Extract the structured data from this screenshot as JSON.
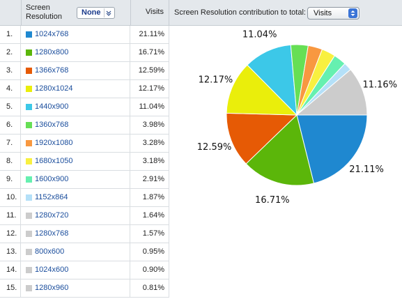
{
  "header": {
    "resolution_label": "Screen Resolution",
    "segment_button": "None",
    "visits_label": "Visits",
    "contribution_label": "Screen Resolution contribution to total:",
    "metric_select": "Visits"
  },
  "rows": [
    {
      "num": "1.",
      "resolution": "1024x768",
      "visits": "21.11%",
      "color": "#1f88d0"
    },
    {
      "num": "2.",
      "resolution": "1280x800",
      "visits": "16.71%",
      "color": "#5bb60a"
    },
    {
      "num": "3.",
      "resolution": "1366x768",
      "visits": "12.59%",
      "color": "#e65a05"
    },
    {
      "num": "4.",
      "resolution": "1280x1024",
      "visits": "12.17%",
      "color": "#eaee0b"
    },
    {
      "num": "5.",
      "resolution": "1440x900",
      "visits": "11.04%",
      "color": "#3cc8e8"
    },
    {
      "num": "6.",
      "resolution": "1360x768",
      "visits": "3.98%",
      "color": "#66df55"
    },
    {
      "num": "7.",
      "resolution": "1920x1080",
      "visits": "3.28%",
      "color": "#f89840"
    },
    {
      "num": "8.",
      "resolution": "1680x1050",
      "visits": "3.18%",
      "color": "#f8f040"
    },
    {
      "num": "9.",
      "resolution": "1600x900",
      "visits": "2.91%",
      "color": "#66f0b0"
    },
    {
      "num": "10.",
      "resolution": "1152x864",
      "visits": "1.87%",
      "color": "#b4e0f8"
    },
    {
      "num": "11.",
      "resolution": "1280x720",
      "visits": "1.64%",
      "color": "#cccccc"
    },
    {
      "num": "12.",
      "resolution": "1280x768",
      "visits": "1.57%",
      "color": "#cccccc"
    },
    {
      "num": "13.",
      "resolution": "800x600",
      "visits": "0.95%",
      "color": "#cccccc"
    },
    {
      "num": "14.",
      "resolution": "1024x600",
      "visits": "0.90%",
      "color": "#cccccc"
    },
    {
      "num": "15.",
      "resolution": "1280x960",
      "visits": "0.81%",
      "color": "#cccccc"
    }
  ],
  "chart_data": {
    "type": "pie",
    "slices": [
      {
        "value": 21.11,
        "color": "#1f88d0",
        "label": "21.11%"
      },
      {
        "value": 16.71,
        "color": "#5bb60a",
        "label": "16.71%"
      },
      {
        "value": 12.59,
        "color": "#e65a05",
        "label": "12.59%"
      },
      {
        "value": 12.17,
        "color": "#eaee0b",
        "label": "12.17%"
      },
      {
        "value": 11.04,
        "color": "#3cc8e8",
        "label": "11.04%"
      },
      {
        "value": 3.98,
        "color": "#66df55",
        "label": ""
      },
      {
        "value": 3.28,
        "color": "#f89840",
        "label": ""
      },
      {
        "value": 3.18,
        "color": "#f8f040",
        "label": ""
      },
      {
        "value": 2.91,
        "color": "#66f0b0",
        "label": ""
      },
      {
        "value": 1.87,
        "color": "#b4e0f8",
        "label": ""
      },
      {
        "value": 11.16,
        "color": "#cccccc",
        "label": "11.16%"
      }
    ]
  }
}
